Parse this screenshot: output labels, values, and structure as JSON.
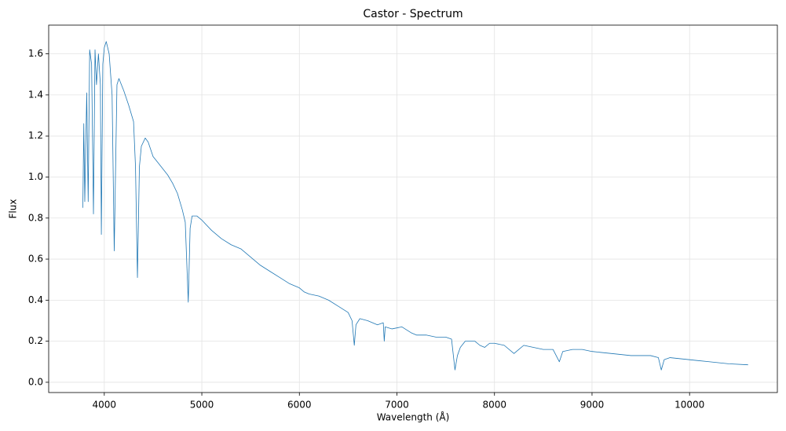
{
  "chart_data": {
    "type": "line",
    "title": "Castor - Spectrum",
    "x_label": "Wavelength (Å)",
    "y_label": "Flux",
    "x": [
      3780,
      3790,
      3800,
      3820,
      3835,
      3850,
      3870,
      3889,
      3905,
      3920,
      3940,
      3960,
      3970,
      3985,
      4000,
      4020,
      4050,
      4080,
      4102,
      4130,
      4150,
      4200,
      4250,
      4300,
      4320,
      4340,
      4360,
      4380,
      4420,
      4450,
      4500,
      4550,
      4600,
      4650,
      4700,
      4750,
      4800,
      4830,
      4861,
      4880,
      4900,
      4950,
      5000,
      5100,
      5200,
      5300,
      5400,
      5500,
      5600,
      5700,
      5800,
      5900,
      6000,
      6050,
      6100,
      6200,
      6300,
      6400,
      6500,
      6540,
      6563,
      6580,
      6620,
      6700,
      6800,
      6860,
      6870,
      6880,
      6950,
      7050,
      7150,
      7200,
      7300,
      7400,
      7500,
      7560,
      7595,
      7620,
      7650,
      7700,
      7800,
      7850,
      7900,
      7950,
      8000,
      8100,
      8200,
      8250,
      8300,
      8400,
      8500,
      8600,
      8665,
      8700,
      8800,
      8900,
      9000,
      9200,
      9400,
      9600,
      9680,
      9710,
      9740,
      9800,
      10000,
      10200,
      10400,
      10600
    ],
    "series": [
      {
        "name": "Flux",
        "color": "#1f77b4",
        "values": [
          0.85,
          1.26,
          0.88,
          1.41,
          0.88,
          1.62,
          1.55,
          0.82,
          1.62,
          1.45,
          1.6,
          1.45,
          0.72,
          1.55,
          1.63,
          1.66,
          1.6,
          1.4,
          0.64,
          1.45,
          1.48,
          1.42,
          1.35,
          1.27,
          1.05,
          0.51,
          1.05,
          1.15,
          1.19,
          1.17,
          1.1,
          1.07,
          1.04,
          1.01,
          0.97,
          0.92,
          0.84,
          0.78,
          0.39,
          0.75,
          0.81,
          0.81,
          0.79,
          0.74,
          0.7,
          0.67,
          0.65,
          0.61,
          0.57,
          0.54,
          0.51,
          0.48,
          0.46,
          0.44,
          0.43,
          0.42,
          0.4,
          0.37,
          0.34,
          0.3,
          0.18,
          0.28,
          0.31,
          0.3,
          0.28,
          0.29,
          0.2,
          0.27,
          0.26,
          0.27,
          0.24,
          0.23,
          0.23,
          0.22,
          0.22,
          0.21,
          0.06,
          0.13,
          0.17,
          0.2,
          0.2,
          0.18,
          0.17,
          0.19,
          0.19,
          0.18,
          0.14,
          0.16,
          0.18,
          0.17,
          0.16,
          0.16,
          0.1,
          0.15,
          0.16,
          0.16,
          0.15,
          0.14,
          0.13,
          0.13,
          0.12,
          0.06,
          0.11,
          0.12,
          0.11,
          0.1,
          0.09,
          0.085
        ]
      }
    ],
    "xlim": [
      3430,
      10900
    ],
    "ylim": [
      -0.05,
      1.74
    ],
    "xticks": [
      4000,
      5000,
      6000,
      7000,
      8000,
      9000,
      10000
    ],
    "yticks": [
      {
        "value": 0,
        "label": "0.0"
      },
      0.2,
      0.4,
      0.6,
      0.8,
      {
        "value": 1,
        "label": "1.0"
      },
      1.2,
      1.4,
      1.6
    ],
    "grid": true
  }
}
